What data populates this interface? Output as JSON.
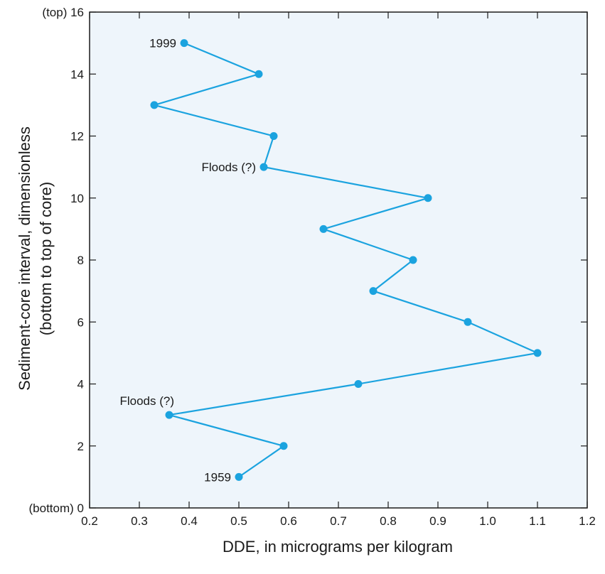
{
  "chart_data": {
    "type": "line",
    "title": "",
    "xlabel": "DDE, in micrograms per kilogram",
    "ylabel_line1": "Sediment-core interval, dimensionless",
    "ylabel_line2": "(bottom to top of core)",
    "xlim": [
      0.2,
      1.2
    ],
    "ylim": [
      0,
      16
    ],
    "x_ticks": [
      "0.2",
      "0.3",
      "0.4",
      "0.5",
      "0.6",
      "0.7",
      "0.8",
      "0.9",
      "1.0",
      "1.1",
      "1.2"
    ],
    "y_ticks": [
      "0",
      "2",
      "4",
      "6",
      "8",
      "10",
      "12",
      "14",
      "16"
    ],
    "y_tick_prefix_top": "(top)",
    "y_tick_prefix_bottom": "(bottom)",
    "grid": false,
    "colors": {
      "plot_background": "#eef5fb",
      "series": "#1ba3df",
      "axis": "#1a1a1a"
    },
    "series": [
      {
        "points": [
          {
            "x": 0.5,
            "y": 1
          },
          {
            "x": 0.59,
            "y": 2
          },
          {
            "x": 0.36,
            "y": 3
          },
          {
            "x": 0.74,
            "y": 4
          },
          {
            "x": 1.1,
            "y": 5
          },
          {
            "x": 0.96,
            "y": 6
          },
          {
            "x": 0.77,
            "y": 7
          },
          {
            "x": 0.85,
            "y": 8
          },
          {
            "x": 0.67,
            "y": 9
          },
          {
            "x": 0.88,
            "y": 10
          },
          {
            "x": 0.55,
            "y": 11
          },
          {
            "x": 0.57,
            "y": 12
          },
          {
            "x": 0.33,
            "y": 13
          },
          {
            "x": 0.54,
            "y": 14
          },
          {
            "x": 0.39,
            "y": 15
          }
        ]
      }
    ],
    "annotations": [
      {
        "text": "1999",
        "x": 0.39,
        "y": 15,
        "anchor": "left-of-point"
      },
      {
        "text": "Floods (?)",
        "x": 0.55,
        "y": 11,
        "anchor": "left-of-point"
      },
      {
        "text": "Floods (?)",
        "x": 0.36,
        "y": 3,
        "anchor": "above-left-of-point"
      },
      {
        "text": "1959",
        "x": 0.5,
        "y": 1,
        "anchor": "left-of-point"
      }
    ]
  }
}
